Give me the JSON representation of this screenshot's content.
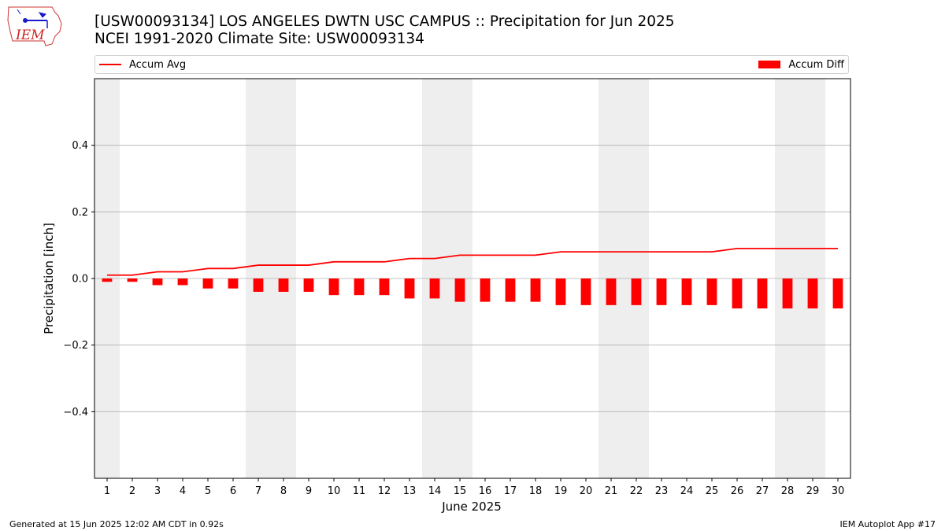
{
  "header": {
    "title_line1": "[USW00093134] LOS ANGELES DWTN USC CAMPUS :: Precipitation for Jun 2025",
    "title_line2": "NCEI 1991-2020 Climate Site: USW00093134"
  },
  "logo": {
    "text": "IEM",
    "icon": "iowa-state-weather-logo"
  },
  "footer": {
    "left": "Generated at 15 Jun 2025 12:02 AM CDT in 0.92s",
    "right": "IEM Autoplot App #17"
  },
  "colors": {
    "series": "#ff0000",
    "weekend_shade": "#eeeeee",
    "grid": "#b0b0b0"
  },
  "chart_data": {
    "type": "bar",
    "xlabel": "June 2025",
    "ylabel": "Precipitation [inch]",
    "xlim": [
      0.5,
      30.5
    ],
    "ylim": [
      -0.6,
      0.6
    ],
    "yticks": [
      -0.4,
      -0.2,
      0.0,
      0.2,
      0.4
    ],
    "ytick_labels": [
      "−0.4",
      "−0.2",
      "0.0",
      "0.2",
      "0.4"
    ],
    "x": [
      1,
      2,
      3,
      4,
      5,
      6,
      7,
      8,
      9,
      10,
      11,
      12,
      13,
      14,
      15,
      16,
      17,
      18,
      19,
      20,
      21,
      22,
      23,
      24,
      25,
      26,
      27,
      28,
      29,
      30
    ],
    "shaded_days": [
      1,
      7,
      8,
      14,
      15,
      21,
      22,
      28,
      29
    ],
    "grid": true,
    "legend_position": "top",
    "series": [
      {
        "name": "Accum Avg",
        "kind": "line",
        "values": [
          0.01,
          0.01,
          0.02,
          0.02,
          0.03,
          0.03,
          0.04,
          0.04,
          0.04,
          0.05,
          0.05,
          0.05,
          0.06,
          0.06,
          0.07,
          0.07,
          0.07,
          0.07,
          0.08,
          0.08,
          0.08,
          0.08,
          0.08,
          0.08,
          0.08,
          0.09,
          0.09,
          0.09,
          0.09,
          0.09
        ]
      },
      {
        "name": "Accum Diff",
        "kind": "bar",
        "values": [
          -0.01,
          -0.01,
          -0.02,
          -0.02,
          -0.03,
          -0.03,
          -0.04,
          -0.04,
          -0.04,
          -0.05,
          -0.05,
          -0.05,
          -0.06,
          -0.06,
          -0.07,
          -0.07,
          -0.07,
          -0.07,
          -0.08,
          -0.08,
          -0.08,
          -0.08,
          -0.08,
          -0.08,
          -0.08,
          -0.09,
          -0.09,
          -0.09,
          -0.09,
          -0.09
        ]
      }
    ]
  }
}
